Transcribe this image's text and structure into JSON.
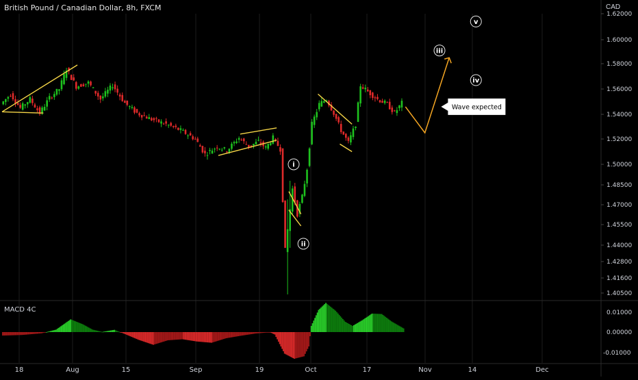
{
  "header": {
    "title": "British Pound / Canadian Dollar, 8h, FXCM",
    "currency": "CAD"
  },
  "annotation": {
    "callout": "Wave expected"
  },
  "colors": {
    "up": "#26a69a",
    "up_candle": "#1ec21e",
    "down": "#e02a2a",
    "trendline": "#f5d547",
    "projection": "#f5a623",
    "grid": "#1c1c1c",
    "axis_text": "#d1d4dc",
    "bg": "#000000"
  },
  "chart_data": [
    {
      "type": "candlestick",
      "title": "British Pound / Canadian Dollar, 8h, FXCM",
      "y_axis_label": "CAD",
      "ylim": [
        1.398,
        1.63
      ],
      "y_ticks": [
        "1.62000",
        "1.60000",
        "1.58000",
        "1.56000",
        "1.54000",
        "1.52000",
        "1.50000",
        "1.48500",
        "1.47000",
        "1.45500",
        "1.44000",
        "1.42800",
        "1.41600",
        "1.40500"
      ],
      "x_ticks": [
        "18",
        "Aug",
        "15",
        "Sep",
        "19",
        "Oct",
        "17",
        "Nov",
        "14",
        "Dec"
      ],
      "price_path": [
        {
          "t": 0,
          "p": 1.548
        },
        {
          "t": 4,
          "p": 1.556
        },
        {
          "t": 8,
          "p": 1.545
        },
        {
          "t": 12,
          "p": 1.552
        },
        {
          "t": 16,
          "p": 1.541
        },
        {
          "t": 20,
          "p": 1.553
        },
        {
          "t": 24,
          "p": 1.56
        },
        {
          "t": 27,
          "p": 1.576
        },
        {
          "t": 31,
          "p": 1.562
        },
        {
          "t": 36,
          "p": 1.565
        },
        {
          "t": 41,
          "p": 1.552
        },
        {
          "t": 46,
          "p": 1.563
        },
        {
          "t": 51,
          "p": 1.549
        },
        {
          "t": 56,
          "p": 1.541
        },
        {
          "t": 62,
          "p": 1.536
        },
        {
          "t": 68,
          "p": 1.532
        },
        {
          "t": 74,
          "p": 1.527
        },
        {
          "t": 80,
          "p": 1.52
        },
        {
          "t": 84,
          "p": 1.508
        },
        {
          "t": 89,
          "p": 1.514
        },
        {
          "t": 93,
          "p": 1.511
        },
        {
          "t": 98,
          "p": 1.521
        },
        {
          "t": 102,
          "p": 1.514
        },
        {
          "t": 106,
          "p": 1.518
        },
        {
          "t": 109,
          "p": 1.513
        },
        {
          "t": 112,
          "p": 1.521
        },
        {
          "t": 115,
          "p": 1.512
        },
        {
          "t": 117,
          "p": 1.436
        },
        {
          "t": 120,
          "p": 1.482
        },
        {
          "t": 122,
          "p": 1.463
        },
        {
          "t": 124,
          "p": 1.476
        },
        {
          "t": 126,
          "p": 1.497
        },
        {
          "t": 128,
          "p": 1.532
        },
        {
          "t": 131,
          "p": 1.548
        },
        {
          "t": 134,
          "p": 1.552
        },
        {
          "t": 137,
          "p": 1.541
        },
        {
          "t": 140,
          "p": 1.527
        },
        {
          "t": 143,
          "p": 1.517
        },
        {
          "t": 146,
          "p": 1.532
        },
        {
          "t": 148,
          "p": 1.563
        },
        {
          "t": 151,
          "p": 1.558
        },
        {
          "t": 155,
          "p": 1.552
        },
        {
          "t": 159,
          "p": 1.548
        },
        {
          "t": 162,
          "p": 1.541
        },
        {
          "t": 165,
          "p": 1.549
        }
      ],
      "special_wicks": [
        {
          "t": 117,
          "low": 1.404,
          "high": 1.474
        },
        {
          "t": 118,
          "low": 1.438,
          "high": 1.488
        }
      ],
      "trendlines": [
        {
          "from": [
            0,
            1.542
          ],
          "to": [
            31,
            1.579
          ]
        },
        {
          "from": [
            0,
            1.542
          ],
          "to": [
            17,
            1.541
          ]
        },
        {
          "from": [
            89,
            1.507
          ],
          "to": [
            113,
            1.519
          ]
        },
        {
          "from": [
            98,
            1.524
          ],
          "to": [
            113,
            1.529
          ]
        },
        {
          "from": [
            118,
            1.48
          ],
          "to": [
            123,
            1.463
          ]
        },
        {
          "from": [
            118,
            1.466
          ],
          "to": [
            123,
            1.454
          ]
        },
        {
          "from": [
            130,
            1.556
          ],
          "to": [
            144,
            1.532
          ]
        },
        {
          "from": [
            139,
            1.516
          ],
          "to": [
            144,
            1.51
          ]
        }
      ],
      "projection": [
        {
          "t": 166,
          "p": 1.546
        },
        {
          "t": 174,
          "p": 1.525
        },
        {
          "t": 184,
          "p": 1.585
        }
      ],
      "wave_labels": [
        {
          "label": "i",
          "t": 120,
          "p": 1.5
        },
        {
          "label": "ii",
          "t": 124,
          "p": 1.441
        },
        {
          "label": "iii",
          "t": 180,
          "p": 1.591
        },
        {
          "label": "iv",
          "t": 195,
          "p": 1.567
        },
        {
          "label": "v",
          "t": 195,
          "p": 1.614
        }
      ],
      "callout": {
        "text": "Wave expected",
        "t": 188,
        "p": 1.546
      }
    },
    {
      "type": "bar",
      "title": "MACD 4C",
      "ylim": [
        -0.0128,
        0.0132
      ],
      "y_ticks": [
        "0.01000",
        "0.00000",
        "-0.01000"
      ],
      "histogram_path": [
        {
          "t": 0,
          "v": -0.0017
        },
        {
          "t": 8,
          "v": -0.0014
        },
        {
          "t": 16,
          "v": -0.0006
        },
        {
          "t": 22,
          "v": 0.0012
        },
        {
          "t": 28,
          "v": 0.0062
        },
        {
          "t": 33,
          "v": 0.0038
        },
        {
          "t": 37,
          "v": 0.0012
        },
        {
          "t": 41,
          "v": 0.0001
        },
        {
          "t": 46,
          "v": 0.0011
        },
        {
          "t": 50,
          "v": -0.0008
        },
        {
          "t": 56,
          "v": -0.0038
        },
        {
          "t": 62,
          "v": -0.0062
        },
        {
          "t": 68,
          "v": -0.004
        },
        {
          "t": 74,
          "v": -0.0035
        },
        {
          "t": 80,
          "v": -0.0046
        },
        {
          "t": 86,
          "v": -0.0052
        },
        {
          "t": 92,
          "v": -0.003
        },
        {
          "t": 98,
          "v": -0.0018
        },
        {
          "t": 104,
          "v": -0.0007
        },
        {
          "t": 110,
          "v": -0.0001
        },
        {
          "t": 112,
          "v": -0.0012
        },
        {
          "t": 116,
          "v": -0.0105
        },
        {
          "t": 120,
          "v": -0.013
        },
        {
          "t": 124,
          "v": -0.0118
        },
        {
          "t": 126,
          "v": -0.007
        },
        {
          "t": 127,
          "v": 0.003
        },
        {
          "t": 130,
          "v": 0.0108
        },
        {
          "t": 133,
          "v": 0.0142
        },
        {
          "t": 137,
          "v": 0.0104
        },
        {
          "t": 141,
          "v": 0.005
        },
        {
          "t": 144,
          "v": 0.003
        },
        {
          "t": 148,
          "v": 0.0058
        },
        {
          "t": 152,
          "v": 0.009
        },
        {
          "t": 156,
          "v": 0.0088
        },
        {
          "t": 160,
          "v": 0.0052
        },
        {
          "t": 165,
          "v": 0.0018
        }
      ]
    }
  ]
}
